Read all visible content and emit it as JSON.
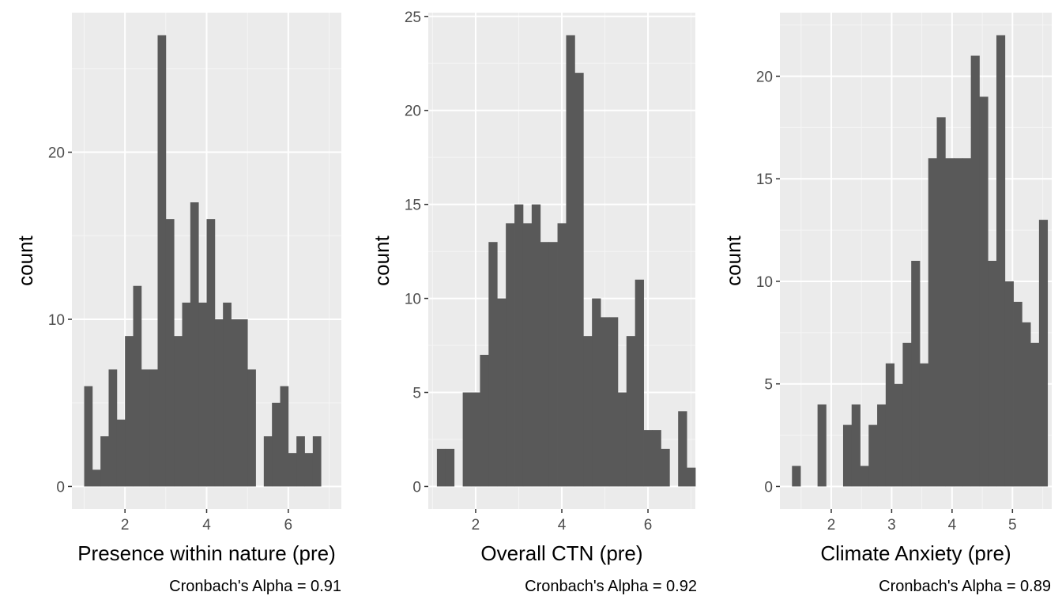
{
  "chart_data": [
    {
      "type": "bar",
      "xlabel": "Presence within nature (pre)",
      "ylabel": "count",
      "caption": "Cronbach's Alpha =  0.91",
      "xlim": [
        0.7,
        7.3
      ],
      "ylim": [
        -1.35,
        28.35
      ],
      "xticks": [
        2,
        4,
        6
      ],
      "yticks": [
        0,
        10,
        20
      ],
      "xtick_labels": [
        "2",
        "4",
        "6"
      ],
      "ytick_labels": [
        "0",
        "10",
        "20"
      ],
      "grid": true,
      "bin_start": 1.0,
      "bin_width": 0.2,
      "values": [
        6,
        1,
        3,
        7,
        4,
        9,
        12,
        7,
        7,
        27,
        16,
        9,
        11,
        17,
        11,
        16,
        10,
        11,
        10,
        10,
        7,
        0,
        3,
        5,
        6,
        2,
        3,
        2,
        3
      ]
    },
    {
      "type": "bar",
      "xlabel": "Overall CTN (pre)",
      "ylabel": "count",
      "caption": "Cronbach's Alpha =  0.92",
      "xlim": [
        0.9,
        7.1
      ],
      "ylim": [
        -1.2,
        25.2
      ],
      "xticks": [
        2,
        4,
        6
      ],
      "yticks": [
        0,
        5,
        10,
        15,
        20,
        25
      ],
      "xtick_labels": [
        "2",
        "4",
        "6"
      ],
      "ytick_labels": [
        "0",
        "5",
        "10",
        "15",
        "20",
        "25"
      ],
      "grid": true,
      "bin_start": 1.1,
      "bin_width": 0.2,
      "values": [
        2,
        2,
        0,
        5,
        5,
        7,
        13,
        10,
        14,
        15,
        14,
        15,
        13,
        13,
        14,
        24,
        22,
        8,
        10,
        9,
        9,
        5,
        8,
        11,
        3,
        3,
        2,
        0,
        4,
        1
      ]
    },
    {
      "type": "bar",
      "xlabel": "Climate Anxiety (pre)",
      "ylabel": "count",
      "caption": "Cronbach's Alpha =  0.89",
      "xlim": [
        1.15,
        5.65
      ],
      "ylim": [
        -1.1,
        23.1
      ],
      "xticks": [
        2,
        3,
        4,
        5
      ],
      "yticks": [
        0,
        5,
        10,
        15,
        20
      ],
      "xtick_labels": [
        "2",
        "3",
        "4",
        "5"
      ],
      "ytick_labels": [
        "0",
        "5",
        "10",
        "15",
        "20"
      ],
      "grid": true,
      "bin_start": 1.35,
      "bin_width": 0.141,
      "values": [
        1,
        0,
        0,
        4,
        0,
        0,
        3,
        4,
        1,
        3,
        4,
        6,
        5,
        7,
        11,
        6,
        16,
        18,
        16,
        16,
        16,
        21,
        19,
        11,
        22,
        10,
        9,
        8,
        7,
        13
      ]
    }
  ]
}
